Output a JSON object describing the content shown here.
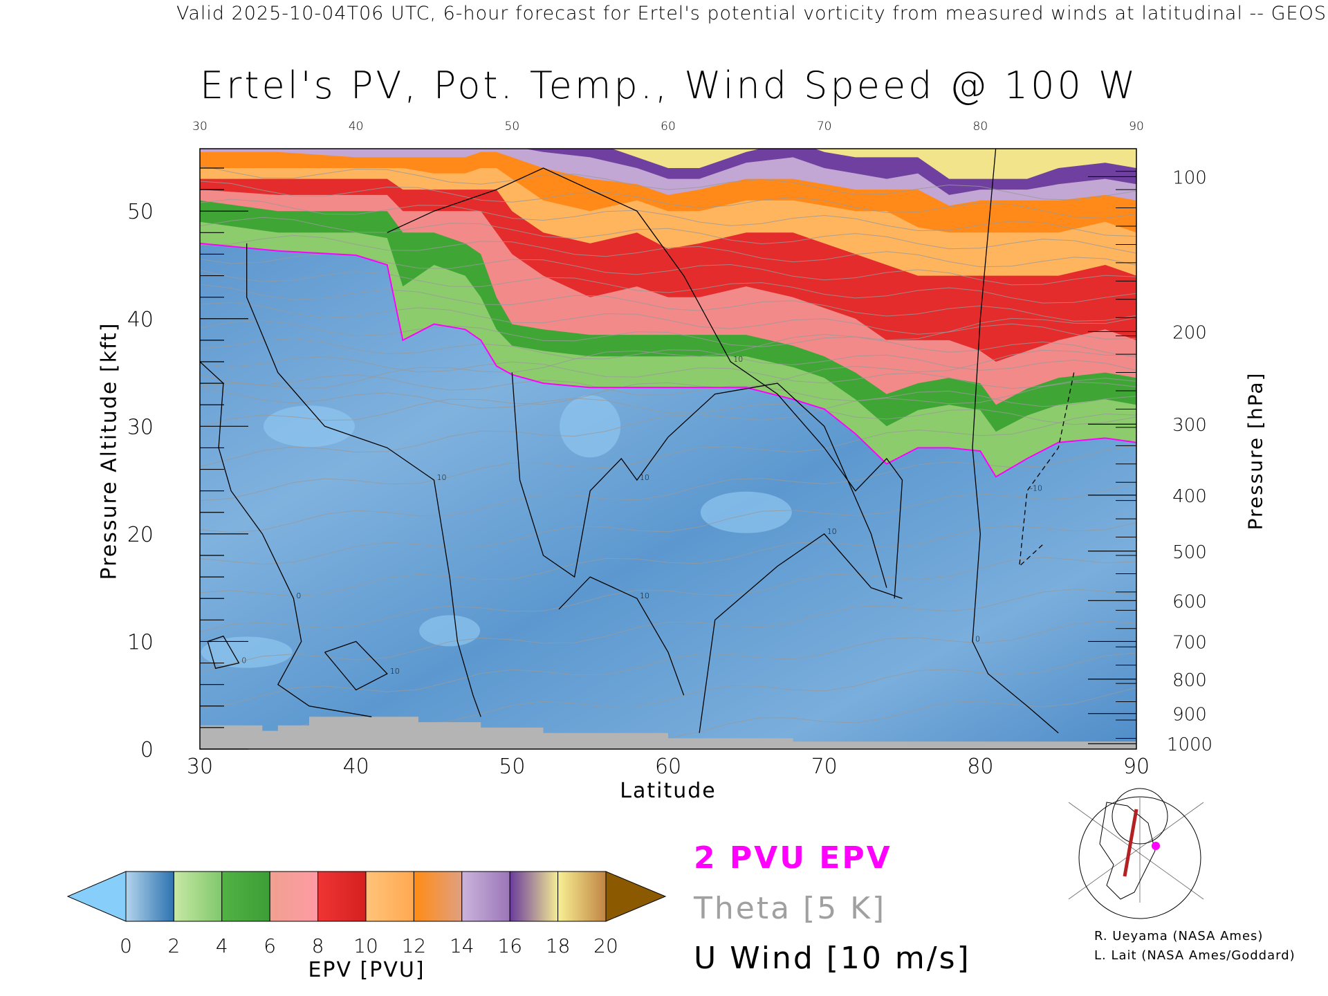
{
  "header": {
    "valid_line": "Valid 2025-10-04T06 UTC, 6-hour forecast for Ertel's potential vorticity from measured winds at latitudinal -- GEOS",
    "title": "Ertel's PV, Pot. Temp., Wind Speed @ 100 W"
  },
  "chart_data": {
    "type": "heatmap",
    "title": "Ertel's PV, Pot. Temp., Wind Speed @ 100 W",
    "xlabel": "Latitude",
    "ylabel": "Pressure Altitude [kft]",
    "ylabel_right": "Pressure [hPa]",
    "xlim": [
      30,
      90
    ],
    "ylim": [
      0,
      55.8
    ],
    "x_ticks": [
      "30",
      "40",
      "50",
      "60",
      "70",
      "80",
      "90"
    ],
    "x_tick_values": [
      30,
      40,
      50,
      60,
      70,
      80,
      90
    ],
    "y_ticks": [
      "0",
      "10",
      "20",
      "30",
      "40",
      "50"
    ],
    "y_tick_values": [
      0,
      10,
      20,
      30,
      40,
      50
    ],
    "pressure_ticks": [
      {
        "label": "100",
        "kft": 53.2
      },
      {
        "label": "200",
        "kft": 38.8
      },
      {
        "label": "300",
        "kft": 30.2
      },
      {
        "label": "400",
        "kft": 23.6
      },
      {
        "label": "500",
        "kft": 18.4
      },
      {
        "label": "600",
        "kft": 13.8
      },
      {
        "label": "700",
        "kft": 10.0
      },
      {
        "label": "800",
        "kft": 6.5
      },
      {
        "label": "900",
        "kft": 3.3
      },
      {
        "label": "1000",
        "kft": 0.5
      }
    ],
    "lat": [
      30,
      35,
      40,
      42,
      43,
      45,
      47,
      48,
      49,
      50,
      52,
      55,
      58,
      60,
      62,
      65,
      68,
      70,
      72,
      74,
      76,
      78,
      80,
      81,
      83,
      85,
      88,
      90
    ],
    "epv_contour_heights_kft": {
      "2": [
        47,
        46.3,
        45.9,
        45,
        38,
        39.5,
        39,
        38,
        35.6,
        34.8,
        34,
        33.6,
        33.6,
        33.6,
        33.6,
        33.6,
        32.5,
        31.6,
        29.3,
        26.5,
        28,
        28,
        27.7,
        25.3,
        27,
        28.5,
        28.9,
        28.5
      ],
      "4": [
        49,
        48,
        48,
        47.5,
        43,
        45,
        44,
        42,
        39,
        37.5,
        37,
        36.5,
        36.5,
        36.5,
        36.5,
        36.5,
        35.5,
        34.5,
        32.5,
        30,
        31.5,
        32,
        31.5,
        29.5,
        31,
        32,
        32.5,
        32
      ],
      "6": [
        51,
        50,
        50,
        50,
        48,
        48,
        47,
        46,
        42,
        39.5,
        39,
        38.5,
        38.5,
        38.5,
        38.5,
        38.5,
        37.5,
        36.5,
        35,
        33,
        34,
        34.5,
        34,
        32,
        33.5,
        34.5,
        35,
        34.5
      ],
      "8": [
        52,
        51.5,
        51.5,
        51.5,
        50,
        50,
        50,
        50,
        48,
        46,
        44,
        42,
        43,
        42,
        42,
        43,
        42,
        41,
        40,
        38,
        38,
        38,
        37,
        36,
        37,
        38,
        39,
        38
      ],
      "10": [
        53,
        53,
        53,
        53,
        52,
        52,
        52,
        52,
        52,
        50,
        48,
        47,
        48,
        46.5,
        47,
        48,
        48,
        47,
        46,
        45,
        44,
        44,
        44,
        44,
        44,
        44,
        45,
        44
      ],
      "12": [
        54,
        54,
        54,
        54,
        54,
        53.5,
        53.5,
        54,
        54,
        53,
        51,
        50,
        51,
        50,
        50,
        51,
        51,
        50.5,
        50,
        50,
        48.5,
        48,
        48,
        48,
        48,
        48,
        49,
        48
      ],
      "14": [
        55.5,
        55.5,
        55,
        55,
        55,
        55,
        55,
        55.5,
        55.5,
        55,
        54,
        53,
        52.5,
        51.5,
        52,
        53,
        53,
        52.5,
        52,
        52,
        52,
        50.5,
        51,
        51,
        51,
        51,
        51.5,
        51
      ],
      "16": [
        56,
        56,
        56,
        56,
        56,
        56,
        56,
        56,
        56,
        56,
        55.5,
        55,
        54,
        53,
        53,
        54.5,
        55,
        54,
        53.5,
        53,
        53.5,
        51.5,
        52,
        52,
        52,
        52.5,
        53,
        52.5
      ],
      "18": [
        57,
        57,
        57,
        57,
        57,
        57,
        57,
        57,
        57,
        57,
        57,
        56.5,
        55,
        54,
        54,
        55.5,
        56.5,
        55.5,
        55,
        55,
        55,
        53,
        53,
        53,
        53,
        54,
        54.5,
        54
      ]
    },
    "terrain_kft": [
      [
        30,
        2.2
      ],
      [
        34,
        2.2
      ],
      [
        34,
        1.7
      ],
      [
        35,
        1.7
      ],
      [
        35,
        2.2
      ],
      [
        37,
        2.2
      ],
      [
        37,
        3
      ],
      [
        44,
        3
      ],
      [
        44,
        2.5
      ],
      [
        48,
        2.5
      ],
      [
        48,
        2
      ],
      [
        52,
        2
      ],
      [
        52,
        1.5
      ],
      [
        60,
        1.5
      ],
      [
        60,
        1
      ],
      [
        68,
        1
      ],
      [
        68,
        0.7
      ],
      [
        90,
        0.7
      ]
    ],
    "u_wind_contours": [
      {
        "level": "10",
        "points": [
          [
            33,
            47
          ],
          [
            33,
            42
          ],
          [
            35,
            35
          ],
          [
            38,
            30
          ],
          [
            42,
            28
          ],
          [
            45,
            25
          ],
          [
            46,
            16
          ],
          [
            46.5,
            10
          ],
          [
            47.5,
            5
          ],
          [
            48,
            3
          ]
        ]
      },
      {
        "level": "0",
        "points": [
          [
            30,
            36
          ],
          [
            31.5,
            34
          ],
          [
            31.2,
            28
          ],
          [
            32,
            24
          ],
          [
            34,
            20
          ],
          [
            36,
            14
          ],
          [
            36.5,
            10
          ],
          [
            35,
            6
          ],
          [
            37,
            4
          ],
          [
            41,
            3
          ]
        ]
      },
      {
        "level": "10",
        "points": [
          [
            42,
            48
          ],
          [
            45,
            50
          ],
          [
            49,
            52
          ],
          [
            52,
            54
          ],
          [
            55,
            52
          ],
          [
            58,
            50
          ],
          [
            61,
            44
          ],
          [
            64,
            36
          ],
          [
            67,
            33
          ],
          [
            70,
            28
          ],
          [
            72,
            24
          ],
          [
            74,
            27
          ],
          [
            75,
            25
          ],
          [
            74.5,
            14
          ]
        ]
      },
      {
        "level": "10",
        "points": [
          [
            50,
            35
          ],
          [
            50.5,
            25
          ],
          [
            52,
            18
          ],
          [
            54,
            16
          ],
          [
            55,
            24
          ],
          [
            57,
            27
          ],
          [
            58,
            25
          ],
          [
            60,
            29
          ],
          [
            63,
            33
          ],
          [
            67,
            34
          ],
          [
            70,
            30
          ],
          [
            73,
            20
          ],
          [
            74,
            15
          ]
        ]
      },
      {
        "level": "0",
        "points": [
          [
            81,
            56
          ],
          [
            80,
            40
          ],
          [
            79.5,
            28
          ],
          [
            80,
            20
          ],
          [
            79.5,
            10
          ],
          [
            80.5,
            7
          ],
          [
            83,
            4
          ],
          [
            85,
            1.5
          ]
        ]
      },
      {
        "level": "-10",
        "dashed": true,
        "points": [
          [
            86,
            35
          ],
          [
            85,
            28
          ],
          [
            83,
            24
          ],
          [
            82.5,
            17
          ],
          [
            84,
            19
          ]
        ]
      },
      {
        "level": "10",
        "points": [
          [
            53,
            13
          ],
          [
            55,
            16
          ],
          [
            58,
            14
          ],
          [
            60,
            9
          ],
          [
            61,
            5
          ]
        ]
      },
      {
        "level": "10",
        "points": [
          [
            62,
            1.5
          ],
          [
            63,
            12
          ],
          [
            67,
            17
          ],
          [
            70,
            20
          ],
          [
            73,
            15
          ],
          [
            75,
            14
          ]
        ]
      },
      {
        "level": "0",
        "points": [
          [
            30.5,
            10
          ],
          [
            31.5,
            10.5
          ],
          [
            32.5,
            8
          ],
          [
            31,
            7.5
          ],
          [
            30.5,
            10
          ]
        ]
      },
      {
        "level": "10",
        "points": [
          [
            38,
            9
          ],
          [
            40,
            10
          ],
          [
            42,
            7
          ],
          [
            40,
            5.5
          ],
          [
            38,
            9
          ]
        ]
      }
    ],
    "colorbar": {
      "label": "EPV [PVU]",
      "ticks": [
        "0",
        "2",
        "4",
        "6",
        "8",
        "10",
        "12",
        "14",
        "16",
        "18",
        "20"
      ],
      "below_color": "#87cefa",
      "above_color": "#8b5a00",
      "segments": [
        [
          "#b4d4ec",
          "#2c72b0"
        ],
        [
          "#c8e8a4",
          "#80c86c"
        ],
        [
          "#52b244",
          "#3c9e36"
        ],
        [
          "#f0a090",
          "#ff9aa4"
        ],
        [
          "#f03434",
          "#d42020"
        ],
        [
          "#ffc47a",
          "#ffa850"
        ],
        [
          "#ff8c14",
          "#e0a080"
        ],
        [
          "#ccb4dc",
          "#9a76b8"
        ],
        [
          "#6a3c9c",
          "#f4ec94"
        ],
        [
          "#f8f094",
          "#c08444"
        ]
      ]
    }
  },
  "legend": {
    "pv_line": "2 PVU EPV",
    "theta": "Theta [5 K]",
    "wind": "U Wind [10 m/s]",
    "pv_color": "#ff00ff",
    "theta_color": "#a0a0a0"
  },
  "credits": {
    "line1": "R. Ueyama (NASA Ames)",
    "line2": "L. Lait (NASA Ames/Goddard)"
  }
}
